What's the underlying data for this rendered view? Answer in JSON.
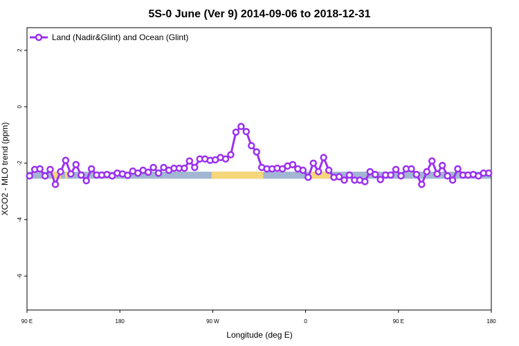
{
  "chart_data": {
    "type": "line",
    "title": "5S-0 June (Ver 9)   2014-09-06 to 2018-12-31",
    "xlabel": "Longitude (deg E)",
    "ylabel": "XCO2 - MLO trend (ppm)",
    "x_ticks": [
      {
        "value": 90,
        "label": "90 E"
      },
      {
        "value": 180,
        "label": "180"
      },
      {
        "value": 270,
        "label": "90 W"
      },
      {
        "value": 360,
        "label": "0"
      },
      {
        "value": 450,
        "label": "90 E"
      },
      {
        "value": 540,
        "label": "180"
      }
    ],
    "y_ticks": [
      {
        "value": 2,
        "label": "2"
      },
      {
        "value": 0,
        "label": "0"
      },
      {
        "value": -2,
        "label": "-2"
      },
      {
        "value": -4,
        "label": "-4"
      },
      {
        "value": -6,
        "label": "-6"
      }
    ],
    "xlim": [
      90,
      540
    ],
    "ylim": [
      -7.2,
      2.8
    ],
    "legend": {
      "position": "top-left",
      "entries": [
        {
          "label": "Land (Nadir&Glint) and Ocean (Glint)",
          "color": "#9b30f0"
        }
      ]
    },
    "series": [
      {
        "name": "Land (Nadir&Glint) and Ocean (Glint)",
        "color": "#9b30f0",
        "x": [
          92.5,
          97.5,
          102.5,
          107.5,
          112.5,
          117.5,
          122.5,
          127.5,
          132.5,
          137.5,
          142.5,
          147.5,
          152.5,
          157.5,
          162.5,
          167.5,
          172.5,
          177.5,
          182.5,
          187.5,
          192.5,
          197.5,
          202.5,
          207.5,
          212.5,
          217.5,
          222.5,
          227.5,
          232.5,
          237.5,
          242.5,
          247.5,
          252.5,
          257.5,
          262.5,
          267.5,
          272.5,
          277.5,
          282.5,
          287.5,
          292.5,
          297.5,
          302.5,
          307.5,
          312.5,
          317.5,
          322.5,
          327.5,
          332.5,
          337.5,
          342.5,
          347.5,
          352.5,
          357.5,
          362.5,
          367.5,
          372.5,
          377.5,
          382.5,
          387.5,
          392.5,
          397.5,
          402.5,
          407.5,
          412.5,
          417.5,
          422.5,
          427.5,
          432.5,
          437.5,
          442.5,
          447.5,
          452.5,
          457.5,
          462.5,
          467.5,
          472.5,
          477.5,
          482.5,
          487.5,
          492.5,
          497.5,
          502.5,
          507.5,
          512.5,
          517.5,
          522.5,
          527.5,
          532.5,
          537.5
        ],
        "values": [
          -2.45,
          -2.22,
          -2.2,
          -2.45,
          -2.22,
          -2.75,
          -2.3,
          -1.9,
          -2.38,
          -2.05,
          -2.42,
          -2.62,
          -2.2,
          -2.42,
          -2.42,
          -2.4,
          -2.45,
          -2.35,
          -2.38,
          -2.43,
          -2.28,
          -2.35,
          -2.25,
          -2.32,
          -2.15,
          -2.35,
          -2.15,
          -2.25,
          -2.18,
          -2.18,
          -2.18,
          -1.92,
          -2.15,
          -1.85,
          -1.85,
          -1.9,
          -1.88,
          -1.8,
          -1.85,
          -1.7,
          -0.9,
          -0.7,
          -0.88,
          -1.38,
          -1.6,
          -2.15,
          -2.2,
          -2.2,
          -2.18,
          -2.2,
          -2.1,
          -2.05,
          -2.2,
          -2.25,
          -2.5,
          -2.0,
          -2.3,
          -1.8,
          -2.25,
          -2.5,
          -2.48,
          -2.6,
          -2.42,
          -2.6,
          -2.6,
          -2.65,
          -2.3,
          -2.4,
          -2.58,
          -2.42,
          -2.42,
          -2.22,
          -2.45,
          -2.2,
          -2.2,
          -2.4,
          -2.75,
          -2.3,
          -1.92,
          -2.38,
          -2.08,
          -2.45,
          -2.6,
          -2.2,
          -2.42,
          -2.42,
          -2.4,
          -2.45,
          -2.35,
          -2.35
        ]
      }
    ],
    "background_band": {
      "y_range": [
        -2.55,
        -2.3
      ],
      "base_color": "#a2b6d4",
      "highlight_color": "#f6d67a",
      "highlight_x_ranges": [
        [
          114,
          123
        ],
        [
          127,
          129
        ],
        [
          269,
          319
        ],
        [
          364,
          384
        ]
      ]
    }
  }
}
